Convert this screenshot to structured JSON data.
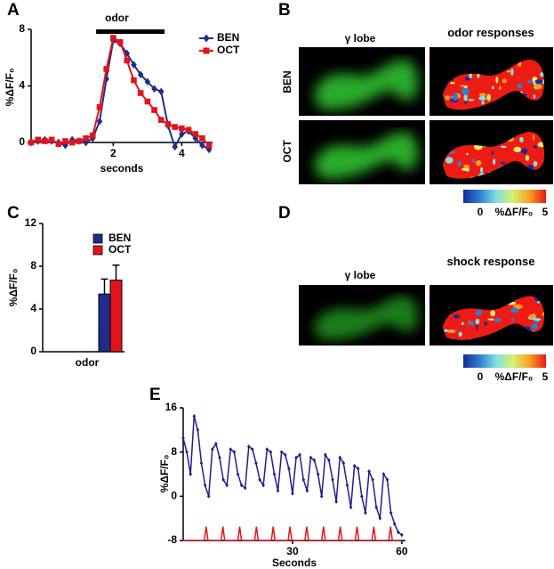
{
  "chart_data": [
    {
      "panel": "A",
      "type": "line",
      "annotation": {
        "text": "odor",
        "x": [
          1.5,
          3.5
        ]
      },
      "x": [
        -0.4,
        -0.2,
        0,
        0.2,
        0.4,
        0.6,
        0.8,
        1.0,
        1.2,
        1.4,
        1.6,
        1.8,
        2.0,
        2.2,
        2.4,
        2.6,
        2.8,
        3.0,
        3.2,
        3.4,
        3.6,
        3.8,
        4.0,
        4.2,
        4.4,
        4.6,
        4.8
      ],
      "series": [
        {
          "name": "BEN",
          "color": "#1f2d8a",
          "marker": "diamond",
          "values": [
            0,
            0.1,
            0.2,
            0.1,
            0,
            -0.2,
            0.2,
            0.1,
            0,
            0.3,
            1.5,
            4.5,
            7.2,
            7,
            6.3,
            5.5,
            4.8,
            4.3,
            3.8,
            3.6,
            1.2,
            -0.3,
            0.6,
            0.8,
            0.3,
            -0.2,
            -0.5
          ]
        },
        {
          "name": "OCT",
          "color": "#e3131b",
          "marker": "square",
          "values": [
            0,
            0.2,
            0.1,
            0.2,
            -0.1,
            0.1,
            0,
            0.1,
            0.3,
            0.5,
            2.5,
            5.2,
            7.4,
            7.1,
            5.8,
            4.4,
            3.5,
            2.9,
            2.3,
            1.6,
            1.3,
            1.1,
            1.0,
            0.9,
            0.6,
            0.3,
            -0.2
          ]
        }
      ],
      "xlabel": "seconds",
      "ylabel": "%ΔF/F₀",
      "xlim": [
        -0.4,
        4.9
      ],
      "xticks": [
        2,
        4
      ],
      "ylim": [
        -0.5,
        8
      ],
      "yticks": [
        0,
        4,
        8
      ],
      "legend": "upper right"
    },
    {
      "panel": "C",
      "type": "bar",
      "categories": [
        "odor"
      ],
      "series": [
        {
          "name": "BEN",
          "color": "#1f2d8a",
          "values": [
            5.4
          ],
          "errors": [
            1.4
          ]
        },
        {
          "name": "OCT",
          "color": "#e3131b",
          "values": [
            6.7
          ],
          "errors": [
            1.4
          ]
        }
      ],
      "ylabel": "%ΔF/F₀",
      "ylim": [
        0,
        12
      ],
      "yticks": [
        0,
        4,
        8,
        12
      ],
      "legend": "upper right"
    },
    {
      "panel": "E",
      "type": "line",
      "x": [
        0,
        1,
        2,
        3,
        4,
        5,
        6,
        7,
        8,
        9,
        10,
        11,
        12,
        13,
        14,
        15,
        16,
        17,
        18,
        19,
        20,
        21,
        22,
        23,
        24,
        25,
        26,
        27,
        28,
        29,
        30,
        31,
        32,
        33,
        34,
        35,
        36,
        37,
        38,
        39,
        40,
        41,
        42,
        43,
        44,
        45,
        46,
        47,
        48,
        49,
        50,
        51,
        52,
        53,
        54,
        55,
        56,
        57,
        58,
        59,
        60
      ],
      "series": [
        {
          "color": "#1f1f8c",
          "marker": "diamond",
          "values": [
            10.5,
            8,
            4,
            14.5,
            12,
            6,
            2,
            0,
            8.5,
            9.5,
            7,
            3,
            2,
            8.5,
            8,
            4,
            2,
            1.5,
            9,
            8.5,
            6,
            3,
            2,
            8.5,
            8,
            4,
            1,
            8,
            7.5,
            5,
            0.5,
            7,
            7.5,
            3,
            1,
            7,
            6.5,
            4,
            0,
            7.5,
            6.5,
            3,
            -1,
            7,
            6,
            2,
            -2,
            5.5,
            5,
            0,
            -3,
            4.5,
            3,
            -2,
            -4,
            4,
            3,
            -3,
            -5,
            -6.5,
            -7
          ]
        },
        {
          "color": "#e3131b",
          "x": [
            0,
            5.8,
            6.3,
            6.8,
            10.4,
            10.9,
            11.4,
            15.0,
            15.5,
            16.0,
            19.6,
            20.1,
            20.6,
            24.2,
            24.7,
            25.2,
            28.8,
            29.3,
            29.8,
            33.4,
            33.9,
            34.4,
            38.0,
            38.5,
            39.0,
            42.6,
            43.1,
            43.6,
            47.2,
            47.7,
            48.2,
            51.8,
            52.3,
            52.8,
            56.4,
            56.9,
            57.4,
            60
          ],
          "values": [
            -8,
            -8,
            -5.5,
            -8,
            -8,
            -5.5,
            -8,
            -8,
            -5.5,
            -8,
            -8,
            -5.5,
            -8,
            -8,
            -5.5,
            -8,
            -8,
            -5.5,
            -8,
            -8,
            -5.5,
            -8,
            -8,
            -5.5,
            -8,
            -8,
            -5.5,
            -8,
            -8,
            -5.5,
            -8,
            -8,
            -5.5,
            -8,
            -8,
            -5.5,
            -8,
            -8
          ]
        }
      ],
      "xlabel": "Seconds",
      "ylabel": "%ΔF/F₀",
      "xlim": [
        0,
        61
      ],
      "xticks": [
        30,
        60
      ],
      "ylim": [
        -8,
        16
      ],
      "yticks": [
        -8,
        0,
        8,
        16
      ]
    }
  ],
  "image_panels": [
    {
      "panel": "B",
      "columns": [
        "γ lobe",
        "odor responses"
      ],
      "rows": [
        "BEN",
        "OCT"
      ],
      "colorbar": {
        "min": 0,
        "label": "%ΔF/F₀",
        "max": 5
      }
    },
    {
      "panel": "D",
      "columns": [
        "γ lobe",
        "shock response"
      ],
      "colorbar": {
        "min": 0,
        "label": "%ΔF/F₀",
        "max": 5
      }
    }
  ]
}
